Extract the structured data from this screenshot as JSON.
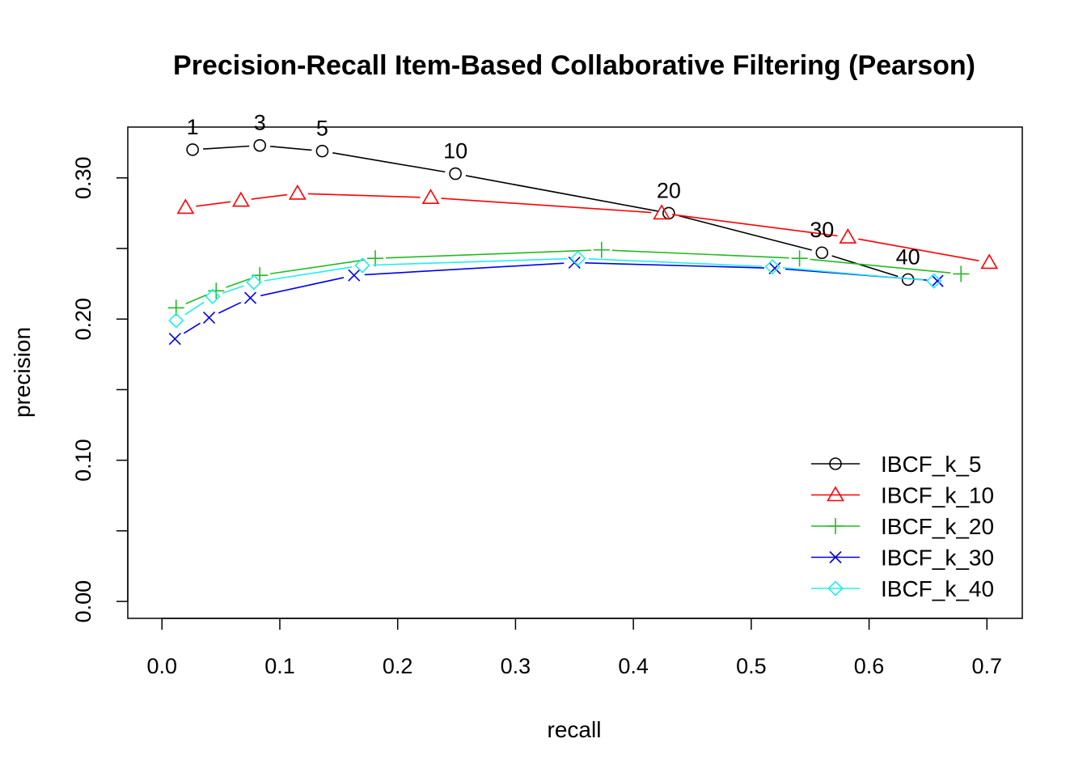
{
  "chart_data": {
    "type": "line",
    "title": "Precision-Recall Item-Based Collaborative Filtering (Pearson)",
    "xlabel": "recall",
    "ylabel": "precision",
    "xlim": [
      -0.029,
      0.73
    ],
    "ylim": [
      -0.012,
      0.336
    ],
    "x_ticks": [
      0.0,
      0.1,
      0.2,
      0.3,
      0.4,
      0.5,
      0.6,
      0.7
    ],
    "x_tick_labels": [
      "0.0",
      "0.1",
      "0.2",
      "0.3",
      "0.4",
      "0.5",
      "0.6",
      "0.7"
    ],
    "y_ticks": [
      0.0,
      0.05,
      0.1,
      0.15,
      0.2,
      0.25,
      0.3
    ],
    "y_tick_labels": [
      "0.00",
      "",
      "0.10",
      "",
      "0.20",
      "",
      "0.30"
    ],
    "grid": false,
    "legend_position": "bottom-right",
    "point_labels_series": 0,
    "point_labels": [
      "1",
      "3",
      "5",
      "10",
      "20",
      "30",
      "40"
    ],
    "series": [
      {
        "name": "IBCF_k_5",
        "color": "#000000",
        "marker": "circle",
        "x": [
          0.026,
          0.083,
          0.136,
          0.249,
          0.43,
          0.56,
          0.633
        ],
        "y": [
          0.32,
          0.323,
          0.319,
          0.303,
          0.275,
          0.247,
          0.228
        ]
      },
      {
        "name": "IBCF_k_10",
        "color": "#FF0000",
        "marker": "triangle",
        "x": [
          0.02,
          0.067,
          0.115,
          0.228,
          0.424,
          0.582,
          0.702
        ],
        "y": [
          0.279,
          0.284,
          0.289,
          0.286,
          0.275,
          0.258,
          0.24
        ]
      },
      {
        "name": "IBCF_k_20",
        "color": "#22BB22",
        "marker": "plus",
        "x": [
          0.012,
          0.046,
          0.083,
          0.181,
          0.373,
          0.541,
          0.678
        ],
        "y": [
          0.208,
          0.22,
          0.231,
          0.243,
          0.249,
          0.243,
          0.232
        ]
      },
      {
        "name": "IBCF_k_30",
        "color": "#0000EE",
        "marker": "x",
        "x": [
          0.011,
          0.04,
          0.075,
          0.163,
          0.35,
          0.52,
          0.658
        ],
        "y": [
          0.186,
          0.201,
          0.215,
          0.231,
          0.24,
          0.236,
          0.227
        ]
      },
      {
        "name": "IBCF_k_40",
        "color": "#22EEEE",
        "marker": "diamond",
        "x": [
          0.012,
          0.043,
          0.078,
          0.17,
          0.353,
          0.518,
          0.655
        ],
        "y": [
          0.199,
          0.216,
          0.226,
          0.238,
          0.243,
          0.237,
          0.227
        ]
      }
    ]
  }
}
